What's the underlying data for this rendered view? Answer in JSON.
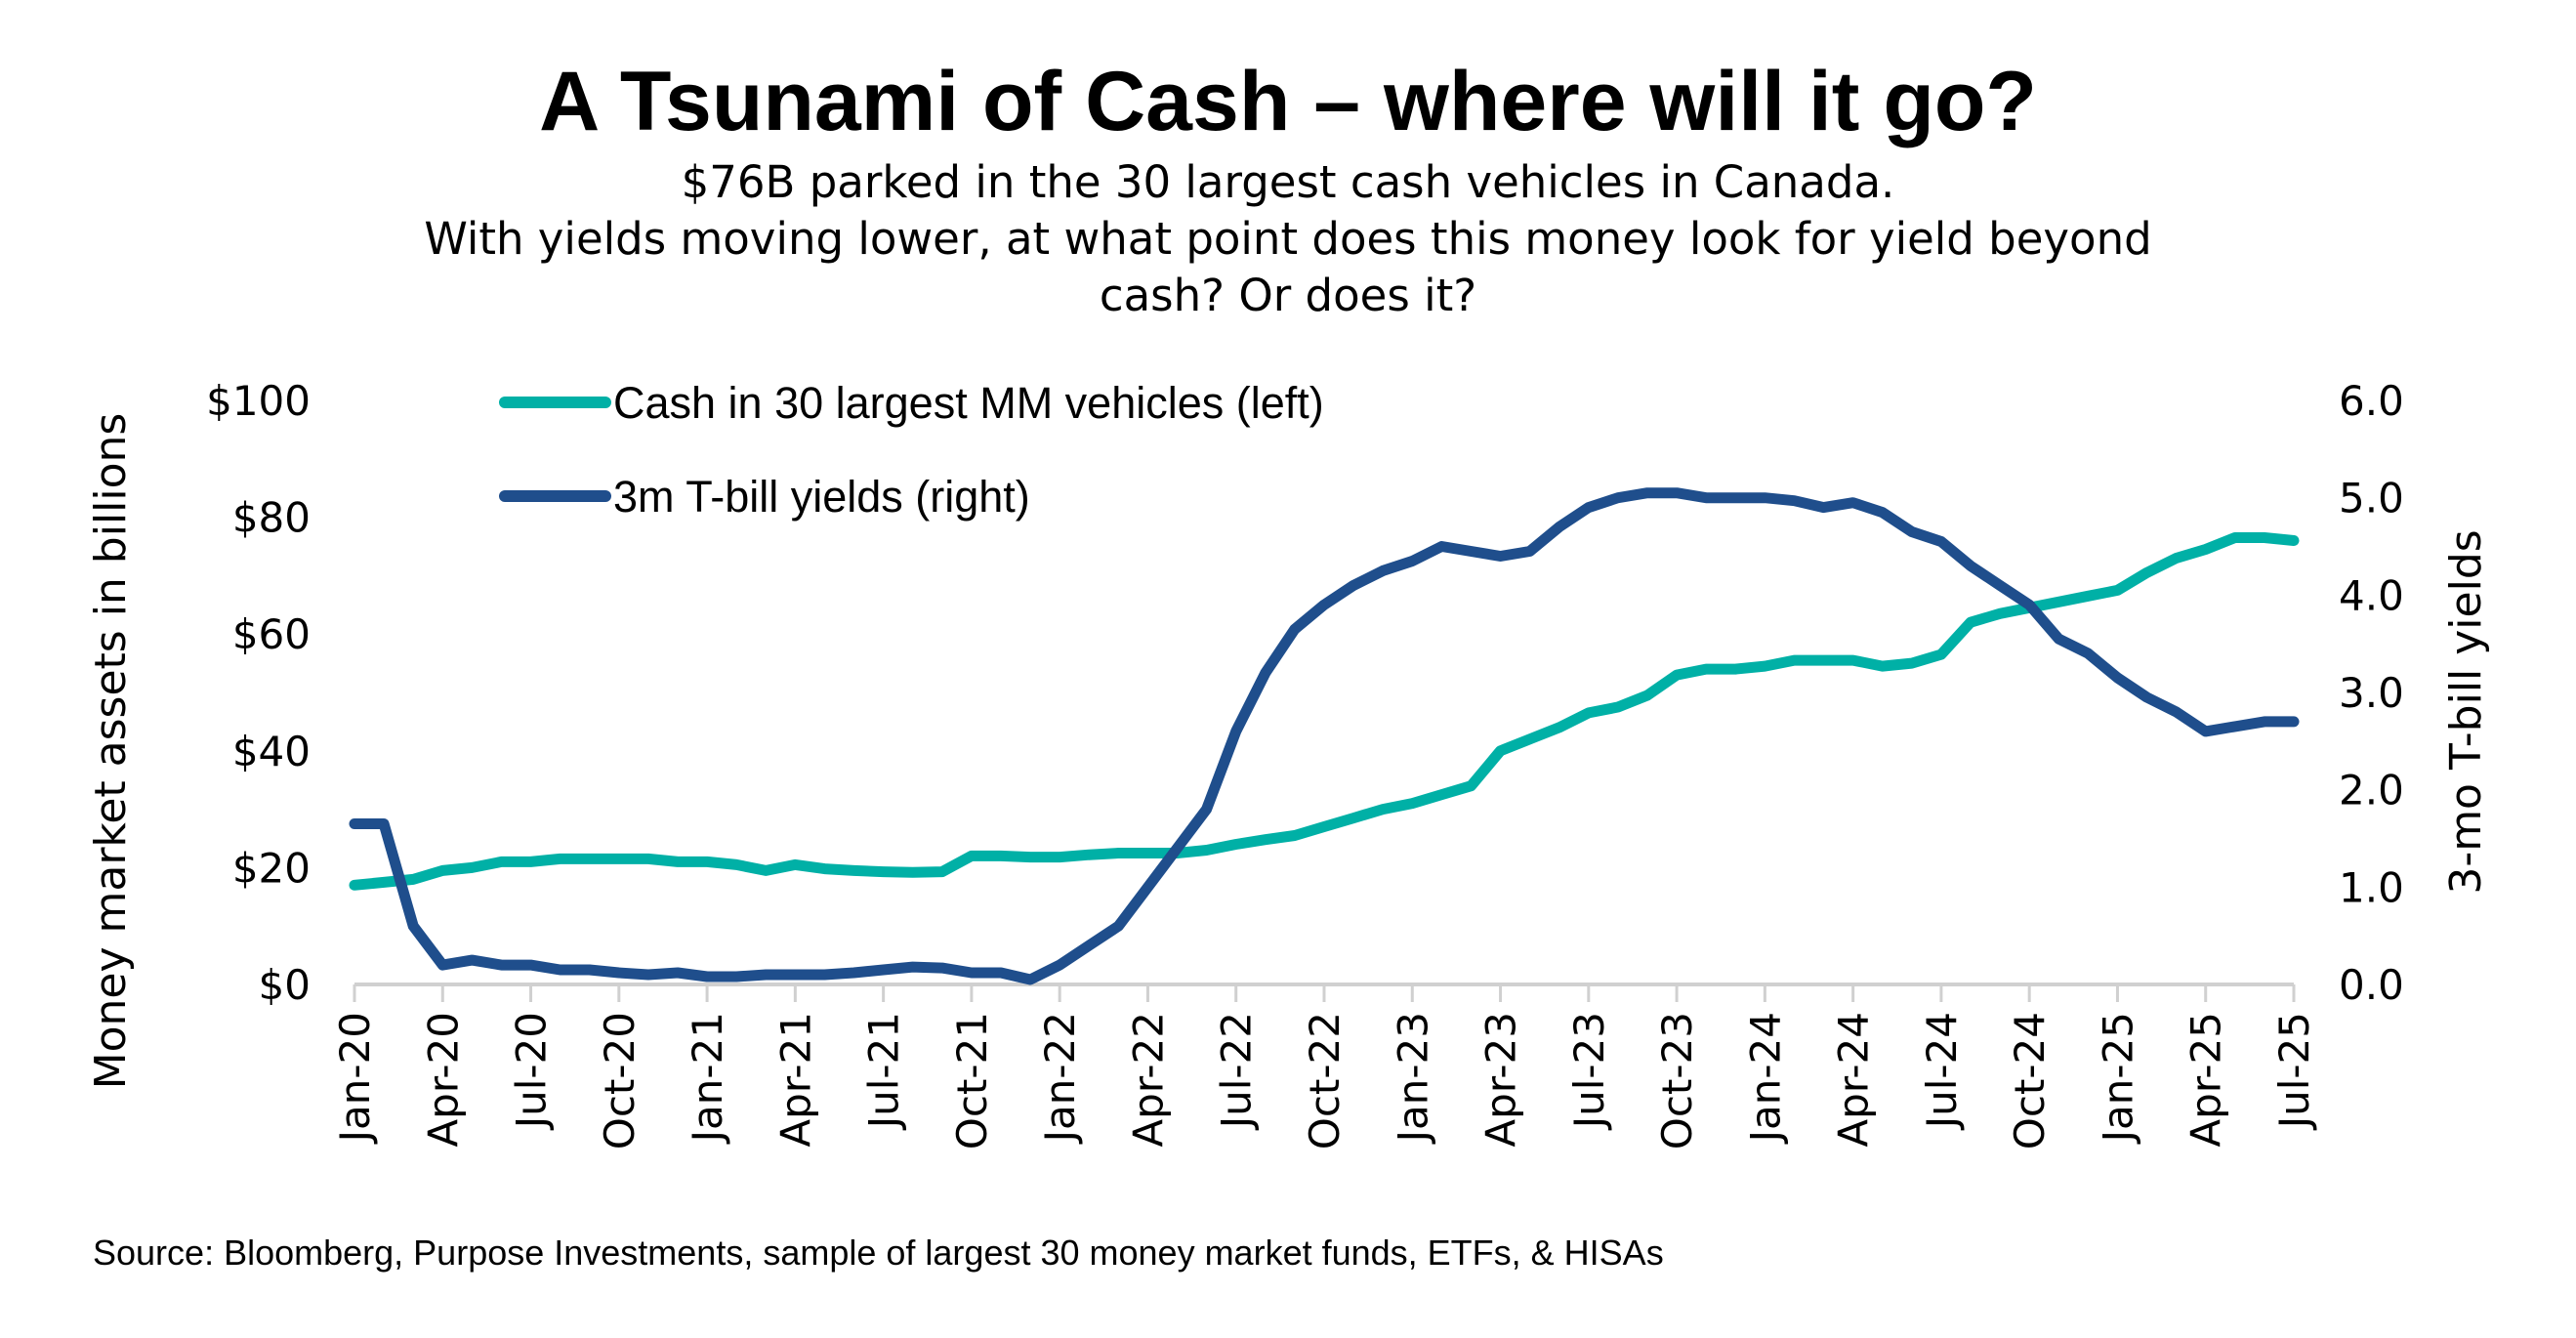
{
  "title": "A Tsunami of Cash – where will it go?",
  "subtitle_lines": [
    "$76B parked in the 30 largest cash vehicles in Canada.",
    "With yields moving lower, at what point does this money look for yield beyond",
    "cash? Or does it?"
  ],
  "source": "Source: Bloomberg, Purpose Investments, sample of largest 30 money market funds, ETFs, & HISAs",
  "chart_data": {
    "type": "line",
    "title": "A Tsunami of Cash – where will it go?",
    "ylabel": "Money market assets in billions",
    "y2label": "3-mo T-bill yields",
    "ylim": [
      0,
      100
    ],
    "y2lim": [
      0,
      6
    ],
    "yticks": [
      "$0",
      "$20",
      "$40",
      "$60",
      "$80",
      "$100"
    ],
    "y2ticks": [
      "0.0",
      "1.0",
      "2.0",
      "3.0",
      "4.0",
      "5.0",
      "6.0"
    ],
    "xticks": [
      "Jan-20",
      "Apr-20",
      "Jul-20",
      "Oct-20",
      "Jan-21",
      "Apr-21",
      "Jul-21",
      "Oct-21",
      "Jan-22",
      "Apr-22",
      "Jul-22",
      "Oct-22",
      "Jan-23",
      "Apr-23",
      "Jul-23",
      "Oct-23",
      "Jan-24",
      "Apr-24",
      "Jul-24",
      "Oct-24",
      "Jan-25",
      "Apr-25",
      "Jul-25"
    ],
    "legend_position": "top-left",
    "grid": false,
    "x_start": "2020-01",
    "x_end": "2025-07",
    "series": [
      {
        "name": "Cash in 30 largest MM vehicles (left)",
        "axis": "left",
        "color": "#00b0a6",
        "values": [
          17,
          17.5,
          18,
          19.5,
          20,
          21,
          21,
          21.5,
          21.5,
          21.5,
          21.5,
          21,
          21,
          20.5,
          19.5,
          20.5,
          19.8,
          19.5,
          19.3,
          19.2,
          19.3,
          22,
          22,
          21.8,
          21.8,
          22.2,
          22.5,
          22.5,
          22.5,
          23,
          24,
          24.8,
          25.5,
          27,
          28.5,
          30,
          31,
          32.5,
          34,
          40,
          42,
          44,
          46.5,
          47.5,
          49.5,
          53,
          54,
          54,
          54.5,
          55.5,
          55.5,
          55.5,
          54.5,
          55,
          56.5,
          62,
          63.5,
          64.5,
          65.5,
          66.5,
          67.5,
          70.5,
          73,
          74.5,
          76.5,
          76.5,
          76
        ]
      },
      {
        "name": "3m T-bill yields (right)",
        "axis": "right",
        "color": "#1f4e8c",
        "values": [
          1.65,
          1.65,
          0.6,
          0.2,
          0.25,
          0.2,
          0.2,
          0.15,
          0.15,
          0.12,
          0.1,
          0.12,
          0.08,
          0.08,
          0.1,
          0.1,
          0.1,
          0.12,
          0.15,
          0.18,
          0.17,
          0.12,
          0.12,
          0.05,
          0.2,
          0.4,
          0.6,
          1.0,
          1.4,
          1.8,
          2.6,
          3.2,
          3.65,
          3.9,
          4.1,
          4.25,
          4.35,
          4.5,
          4.45,
          4.4,
          4.45,
          4.7,
          4.9,
          5.0,
          5.05,
          5.05,
          5.0,
          5.0,
          5.0,
          4.97,
          4.9,
          4.95,
          4.85,
          4.65,
          4.55,
          4.3,
          4.1,
          3.9,
          3.55,
          3.4,
          3.15,
          2.95,
          2.8,
          2.6,
          2.65,
          2.7,
          2.7
        ]
      }
    ]
  }
}
